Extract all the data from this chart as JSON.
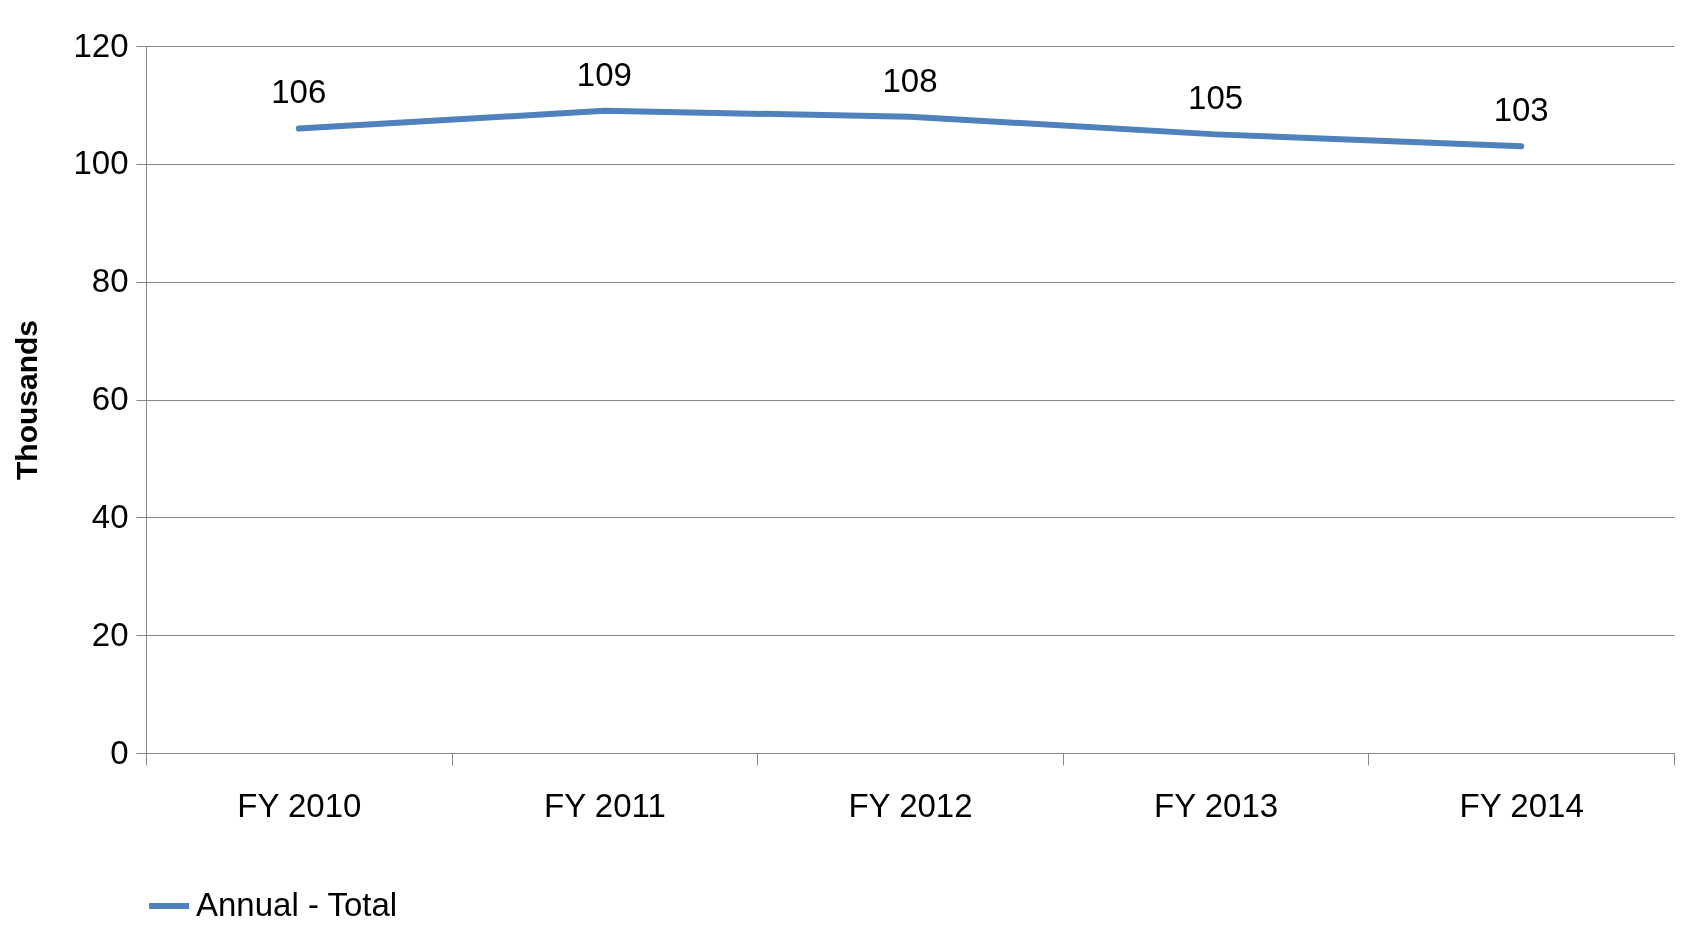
{
  "chart_data": {
    "type": "line",
    "ylabel": "Thousands",
    "categories": [
      "FY 2010",
      "FY 2011",
      "FY 2012",
      "FY 2013",
      "FY 2014"
    ],
    "series": [
      {
        "name": "Annual  - Total",
        "color": "#4f81bd",
        "values": [
          106,
          109,
          108,
          105,
          103
        ]
      }
    ],
    "ylim": [
      0,
      120
    ],
    "yticks": [
      0,
      20,
      40,
      60,
      80,
      100,
      120
    ],
    "grid": "y",
    "legend": "bottom",
    "data_labels": true
  }
}
